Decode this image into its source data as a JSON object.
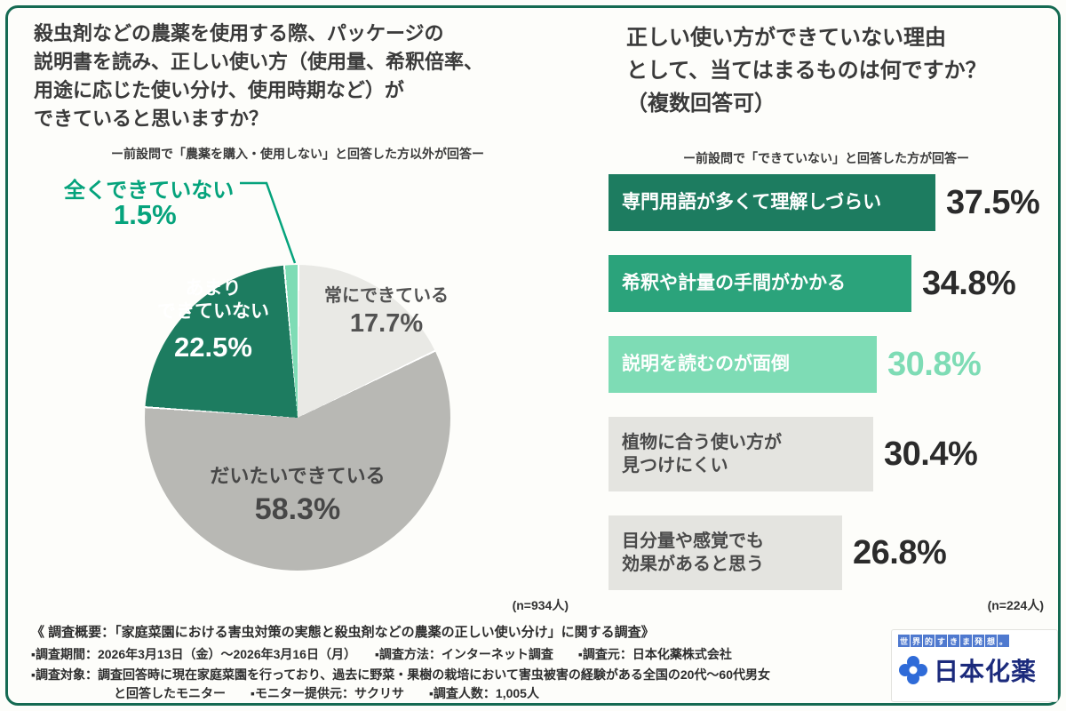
{
  "frame": {
    "border_color": "#156a52",
    "background": "#fdfdfa"
  },
  "left": {
    "title": "殺虫剤などの農薬を使用する際、パッケージの\n説明書を読み、正しい使い方（使用量、希釈倍率、\n用途に応じた使い分け、使用時期など）が\nできていると思いますか？",
    "subtitle": "ー前設問で「農薬を購入・使用しない」と回答した方以外が回答ー",
    "n_label": "(n=934人)"
  },
  "right": {
    "title": "正しい使い方ができていない理由\nとして、当てはまるものは何ですか？\n（複数回答可）",
    "subtitle": "ー前設問で「できていない」と回答した方が回答ー",
    "n_label": "(n=224人)"
  },
  "chart_data": [
    {
      "type": "pie",
      "title": "殺虫剤などの農薬を使用する際、パッケージの説明書を読み、正しい使い方（使用量、希釈倍率、用途に応じた使い分け、使用時期など）ができていると思いますか？",
      "subtitle": "前設問で「農薬を購入・使用しない」と回答した方以外が回答",
      "labels": [
        "常にできている",
        "だいたいできている",
        "あまりできていない",
        "全くできていない"
      ],
      "labels_display": [
        "常にできている",
        "だいたいできている",
        "あまり\nできていない",
        "全くできていない"
      ],
      "values": [
        17.7,
        58.3,
        22.5,
        1.5
      ],
      "value_labels": [
        "17.7%",
        "58.3%",
        "22.5%",
        "1.5%"
      ],
      "colors": [
        "#e9e9e5",
        "#b8b8b4",
        "#1d7c60",
        "#7edcb5"
      ],
      "start_angle_deg": 0,
      "n": 934
    },
    {
      "type": "bar",
      "orientation": "horizontal",
      "title": "正しい使い方ができていない理由として、当てはまるものは何ですか？（複数回答可）",
      "subtitle": "前設問で「できていない」と回答した方が回答",
      "categories": [
        "専門用語が多くて理解しづらい",
        "希釈や計量の手間がかかる",
        "説明を読むのが面倒",
        "植物に合う使い方が見つけにくい",
        "目分量や感覚でも効果があると思う"
      ],
      "categories_display": [
        "専門用語が多くて理解しづらい",
        "希釈や計量の手間がかかる",
        "説明を読むのが面倒",
        "植物に合う使い方が\n見つけにくい",
        "目分量や感覚でも\n効果があると思う"
      ],
      "values": [
        37.5,
        34.8,
        30.8,
        30.4,
        26.8
      ],
      "value_labels": [
        "37.5%",
        "34.8%",
        "30.8%",
        "30.4%",
        "26.8%"
      ],
      "bar_colors": [
        "#1d7c60",
        "#2ba37b",
        "#7edcb5",
        "#e4e4e0",
        "#e4e4e0"
      ],
      "label_colors": [
        "#ffffff",
        "#ffffff",
        "#ffffff",
        "#4a4a4a",
        "#4a4a4a"
      ],
      "value_colors": [
        "#2b2b2b",
        "#2b2b2b",
        "#7edcb5",
        "#2b2b2b",
        "#2b2b2b"
      ],
      "xlim": [
        0,
        40
      ],
      "n": 224
    }
  ],
  "footer": {
    "line1": "《 調査概要：「家庭菜園における害虫対策の実態と殺虫剤などの農薬の正しい使い分け」に関する調査》",
    "line2": "▪調査期間：2026年3月13日（金）〜2026年3月16日（月）　　▪調査方法：インターネット調査　　▪調査元：日本化薬株式会社",
    "line3": "▪調査対象：調査回答時に現在家庭菜園を行っており、過去に野菜・果樹の栽培において害虫被害の経験がある全国の20代〜60代男女",
    "line4": "と回答したモニター　　▪モニター提供元：サクリサ　　▪調査人数：1,005人"
  },
  "logo": {
    "tagline": "世界的すきま発想。",
    "company": "日本化薬",
    "brand_navy": "#1b2a7c",
    "icon_blue": "#2f6bd8",
    "accent_teal": "#05a37c"
  }
}
